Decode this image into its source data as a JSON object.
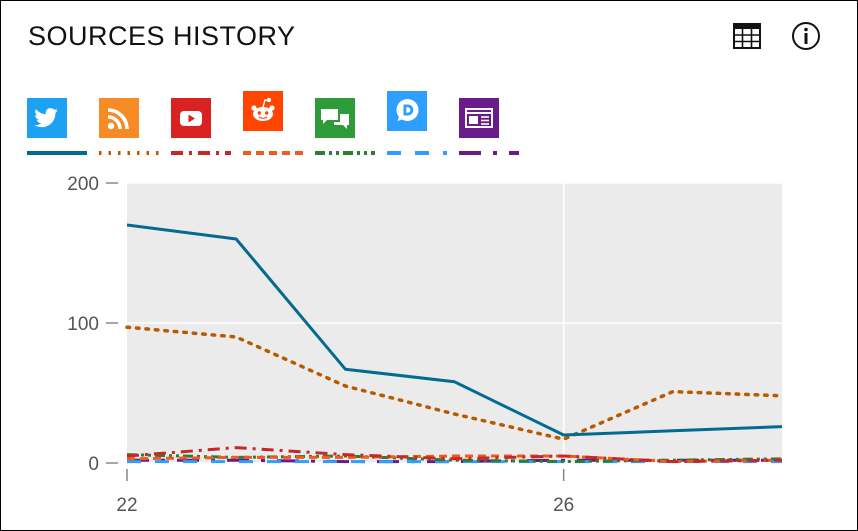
{
  "widget": {
    "title": "SOURCES HISTORY",
    "table_button": "table-icon",
    "info_button": "info-icon"
  },
  "sources": [
    {
      "id": "twitter",
      "icon": "twitter-icon",
      "color": "#1da1f2",
      "line_color": "#036b91",
      "dash": "solid"
    },
    {
      "id": "rss",
      "icon": "rss-icon",
      "color": "#f68a24",
      "line_color": "#b85a00",
      "dash": "dotted"
    },
    {
      "id": "youtube",
      "icon": "youtube-icon",
      "color": "#d92323",
      "line_color": "#c62828",
      "dash": "dashdot"
    },
    {
      "id": "reddit",
      "icon": "reddit-icon",
      "color": "#ff4500",
      "line_color": "#f05a1a",
      "dash": "dashed"
    },
    {
      "id": "forums",
      "icon": "forum-icon",
      "color": "#2e9b3a",
      "line_color": "#2e7d32",
      "dash": "dashdotdot"
    },
    {
      "id": "disqus",
      "icon": "disqus-icon",
      "color": "#2e9fff",
      "line_color": "#2e9fff",
      "dash": "longdash"
    },
    {
      "id": "news",
      "icon": "news-icon",
      "color": "#6a1b8a",
      "line_color": "#6a1b8a",
      "dash": "dashdotsparse"
    }
  ],
  "chart_data": {
    "type": "line",
    "x": [
      22,
      23,
      24,
      25,
      26,
      27,
      28
    ],
    "xticks": [
      "22",
      "26"
    ],
    "yticks": [
      "0",
      "100",
      "200"
    ],
    "ylim": [
      0,
      200
    ],
    "xlim": [
      22,
      28
    ],
    "grid": true,
    "series": [
      {
        "source": "twitter",
        "values": [
          170,
          160,
          67,
          58,
          20,
          23,
          26
        ]
      },
      {
        "source": "rss",
        "values": [
          97,
          90,
          55,
          35,
          17,
          51,
          48
        ]
      },
      {
        "source": "youtube",
        "values": [
          5,
          11,
          6,
          3,
          5,
          1,
          2
        ]
      },
      {
        "source": "reddit",
        "values": [
          3,
          4,
          4,
          5,
          5,
          1,
          2
        ]
      },
      {
        "source": "forums",
        "values": [
          6,
          4,
          5,
          2,
          1,
          2,
          3
        ]
      },
      {
        "source": "disqus",
        "values": [
          1,
          1,
          1,
          1,
          1,
          1,
          1
        ]
      },
      {
        "source": "news",
        "values": [
          2,
          2,
          1,
          1,
          2,
          2,
          2
        ]
      }
    ]
  }
}
